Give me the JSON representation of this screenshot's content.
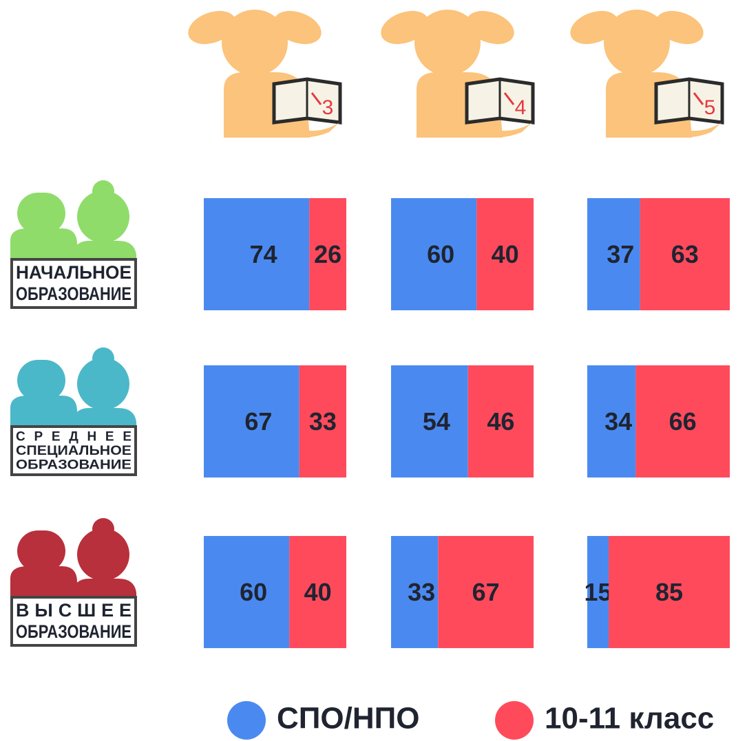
{
  "chart_data": {
    "type": "bar",
    "categories": [
      "3",
      "4",
      "5"
    ],
    "rows": [
      {
        "lines": [
          "НАЧАЛЬНОЕ",
          "ОБРАЗОВАНИЕ"
        ],
        "color": "#8fdc6a"
      },
      {
        "lines": [
          "СРЕДНЕЕ",
          "СПЕЦИАЛЬНОЕ",
          "ОБРАЗОВАНИЕ"
        ],
        "color": "#4bb8c9"
      },
      {
        "lines": [
          "ВЫСШЕЕ",
          "ОБРАЗОВАНИЕ"
        ],
        "color": "#b8303c"
      }
    ],
    "series": [
      {
        "name": "СПО/НПО",
        "color": "#4a8af0",
        "values": [
          [
            74,
            60,
            37
          ],
          [
            67,
            54,
            34
          ],
          [
            60,
            33,
            15
          ]
        ]
      },
      {
        "name": "10-11 класс",
        "color": "#ff4a5c",
        "values": [
          [
            26,
            40,
            63
          ],
          [
            33,
            46,
            66
          ],
          [
            40,
            67,
            85
          ]
        ]
      }
    ]
  }
}
